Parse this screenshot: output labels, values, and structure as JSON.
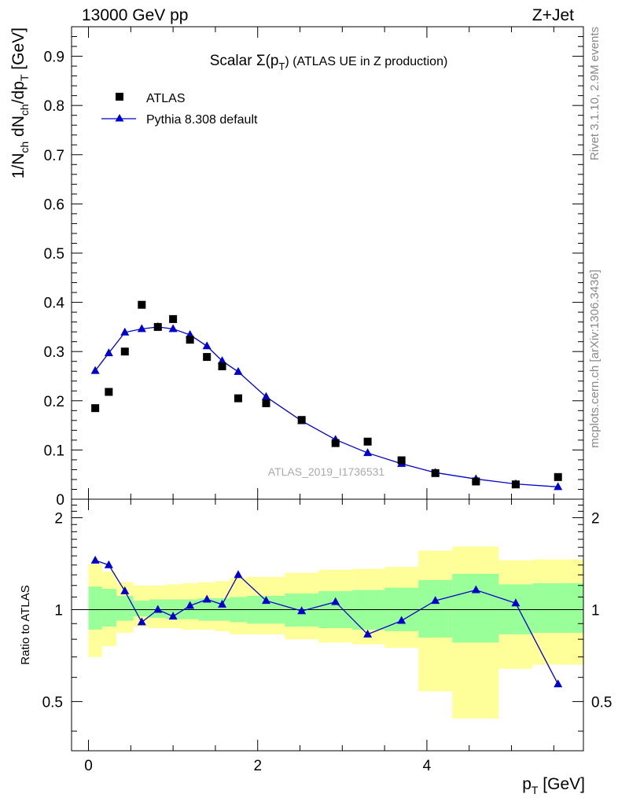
{
  "header": {
    "left": "13000 GeV pp",
    "right": "Z+Jet"
  },
  "side_labels": {
    "rivet": "Rivet 3.1.10,  2.9M events",
    "mcplots": "mcplots.cern.ch [arXiv:1306.3436]"
  },
  "chart_data": [
    {
      "type": "scatter",
      "panel": "main",
      "title": "Scalar Σ(pT) (ATLAS UE in Z production)",
      "title_parts": {
        "prefix": "Scalar ",
        "sigma": "Σ(p",
        "sub": "T",
        "suffix": ") (ATLAS UE in Z production)"
      },
      "ylabel": "1/N_ch dN_ch/dp_T [GeV]",
      "ylabel_parts": {
        "a": "1/N",
        "a_sub": "ch",
        "b": " dN",
        "b_sub": "ch",
        "c": "/dp",
        "c_sub": "T",
        "d": " [GeV]"
      },
      "xlim": [
        -0.2,
        5.85
      ],
      "ylim": [
        0,
        0.96
      ],
      "yticks": [
        0,
        0.1,
        0.2,
        0.3,
        0.4,
        0.5,
        0.6,
        0.7,
        0.8,
        0.9
      ],
      "ytick_labels": [
        "0",
        "0.1",
        "0.2",
        "0.3",
        "0.4",
        "0.5",
        "0.6",
        "0.7",
        "0.8",
        "0.9"
      ],
      "watermark": "ATLAS_2019_I1736531",
      "legend_position": "top-left",
      "series": [
        {
          "name": "ATLAS",
          "marker": "square",
          "color": "#000000",
          "x": [
            0.08,
            0.24,
            0.43,
            0.63,
            0.82,
            1.0,
            1.2,
            1.4,
            1.58,
            1.77,
            2.1,
            2.52,
            2.92,
            3.3,
            3.7,
            4.1,
            4.58,
            5.05,
            5.55
          ],
          "y": [
            0.185,
            0.218,
            0.3,
            0.395,
            0.35,
            0.366,
            0.324,
            0.289,
            0.27,
            0.205,
            0.195,
            0.161,
            0.114,
            0.117,
            0.079,
            0.053,
            0.036,
            0.03,
            0.045
          ]
        },
        {
          "name": "Pythia 8.308 default",
          "marker": "triangle",
          "color": "#0000cc",
          "x": [
            0.08,
            0.24,
            0.43,
            0.63,
            0.82,
            1.0,
            1.2,
            1.4,
            1.58,
            1.77,
            2.1,
            2.52,
            2.92,
            3.3,
            3.7,
            4.1,
            4.58,
            5.05,
            5.55
          ],
          "y": [
            0.261,
            0.297,
            0.339,
            0.346,
            0.35,
            0.346,
            0.334,
            0.311,
            0.281,
            0.259,
            0.208,
            0.159,
            0.121,
            0.094,
            0.072,
            0.054,
            0.041,
            0.031,
            0.025
          ]
        }
      ]
    },
    {
      "type": "line",
      "panel": "ratio",
      "ylabel": "Ratio to ATLAS",
      "xlabel": "p_T [GeV]",
      "xlabel_parts": {
        "a": "p",
        "sub": "T",
        "b": " [GeV]"
      },
      "xlim": [
        -0.2,
        5.85
      ],
      "ylim": [
        0.345,
        2.3
      ],
      "yscale": "log",
      "xticks": [
        0,
        2,
        4
      ],
      "xtick_labels": [
        "0",
        "2",
        "4"
      ],
      "yticks": [
        0.5,
        1,
        2
      ],
      "ytick_labels": [
        "0.5",
        "1",
        "2"
      ],
      "bin_edges": [
        0,
        0.16,
        0.33,
        0.53,
        0.72,
        0.92,
        1.1,
        1.3,
        1.5,
        1.67,
        1.87,
        2.32,
        2.72,
        3.12,
        3.5,
        3.9,
        4.3,
        4.85,
        5.25,
        5.85
      ],
      "band_green": {
        "lo": [
          0.86,
          0.88,
          0.92,
          0.95,
          0.94,
          0.93,
          0.93,
          0.92,
          0.92,
          0.91,
          0.9,
          0.88,
          0.87,
          0.86,
          0.85,
          0.81,
          0.78,
          0.83,
          0.84
        ],
        "hi": [
          1.19,
          1.17,
          1.11,
          1.07,
          1.08,
          1.08,
          1.08,
          1.09,
          1.09,
          1.1,
          1.11,
          1.13,
          1.15,
          1.16,
          1.18,
          1.25,
          1.31,
          1.21,
          1.22
        ]
      },
      "band_yellow": {
        "lo": [
          0.7,
          0.76,
          0.84,
          0.88,
          0.87,
          0.87,
          0.86,
          0.86,
          0.85,
          0.83,
          0.83,
          0.8,
          0.78,
          0.77,
          0.75,
          0.54,
          0.44,
          0.64,
          0.66
        ],
        "hi": [
          1.41,
          1.33,
          1.23,
          1.2,
          1.2,
          1.21,
          1.22,
          1.23,
          1.24,
          1.27,
          1.28,
          1.32,
          1.35,
          1.36,
          1.38,
          1.56,
          1.61,
          1.45,
          1.46
        ]
      },
      "series": [
        {
          "name": "Pythia 8.308 default",
          "marker": "triangle",
          "color": "#0000cc",
          "x": [
            0.08,
            0.24,
            0.43,
            0.63,
            0.82,
            1.0,
            1.2,
            1.4,
            1.58,
            1.77,
            2.1,
            2.52,
            2.92,
            3.3,
            3.7,
            4.1,
            4.58,
            5.05,
            5.55
          ],
          "y": [
            1.45,
            1.4,
            1.15,
            0.91,
            1.0,
            0.95,
            1.03,
            1.08,
            1.04,
            1.3,
            1.07,
            0.99,
            1.06,
            0.83,
            0.92,
            1.07,
            1.16,
            1.05,
            0.57
          ]
        }
      ]
    }
  ]
}
